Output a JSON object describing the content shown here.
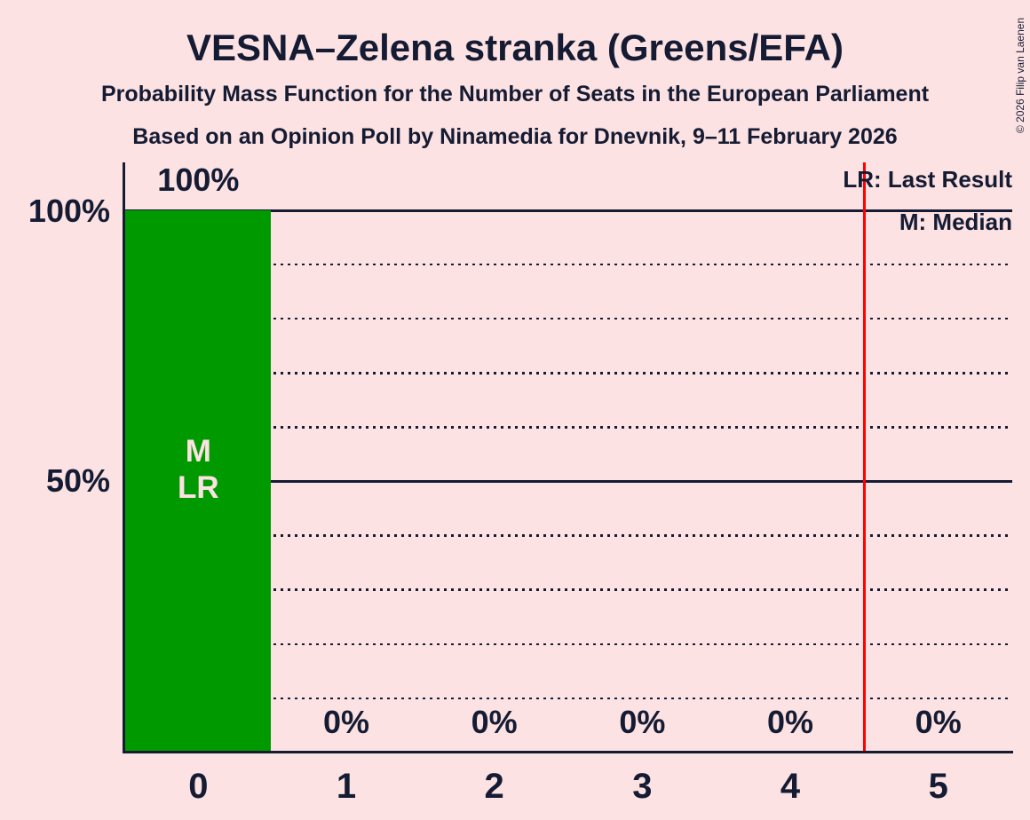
{
  "header": {
    "title": "VESNA–Zelena stranka (Greens/EFA)",
    "subtitle_line1": "Probability Mass Function for the Number of Seats in the European Parliament",
    "subtitle_line2": "Based on an Opinion Poll by Ninamedia for Dnevnik, 9–11 February 2026"
  },
  "copyright": "© 2026 Filip van Laenen",
  "legend": {
    "last_result": "LR: Last Result",
    "median": "M: Median"
  },
  "y_axis_labels": {
    "top": "100%",
    "middle": "50%"
  },
  "bar_annotation": {
    "median": "M",
    "last_result": "LR"
  },
  "chart_data": {
    "type": "bar",
    "title": "VESNA–Zelena stranka (Greens/EFA)",
    "categories": [
      "0",
      "1",
      "2",
      "3",
      "4",
      "5"
    ],
    "values": [
      100,
      0,
      0,
      0,
      0,
      0
    ],
    "value_labels": [
      "100%",
      "0%",
      "0%",
      "0%",
      "0%",
      "0%"
    ],
    "xlabel": "",
    "ylabel": "",
    "ylim": [
      0,
      100
    ],
    "y_tick_labels_shown": [
      "100%",
      "50%"
    ],
    "gridlines_solid_percent": [
      100,
      50
    ],
    "gridlines_dotted_percent": [
      90,
      80,
      70,
      60,
      40,
      30,
      20,
      10
    ],
    "annotated_bar": {
      "seats": "0",
      "markers": [
        "M",
        "LR"
      ]
    },
    "red_line_x": 4.5,
    "legend_position": "top-right",
    "grid": true,
    "colors": {
      "bar": "#009a00",
      "background": "#fce2e2",
      "text": "#141b33",
      "red_line": "#ff0000",
      "bar_inner_label": "#fce2e2"
    }
  }
}
